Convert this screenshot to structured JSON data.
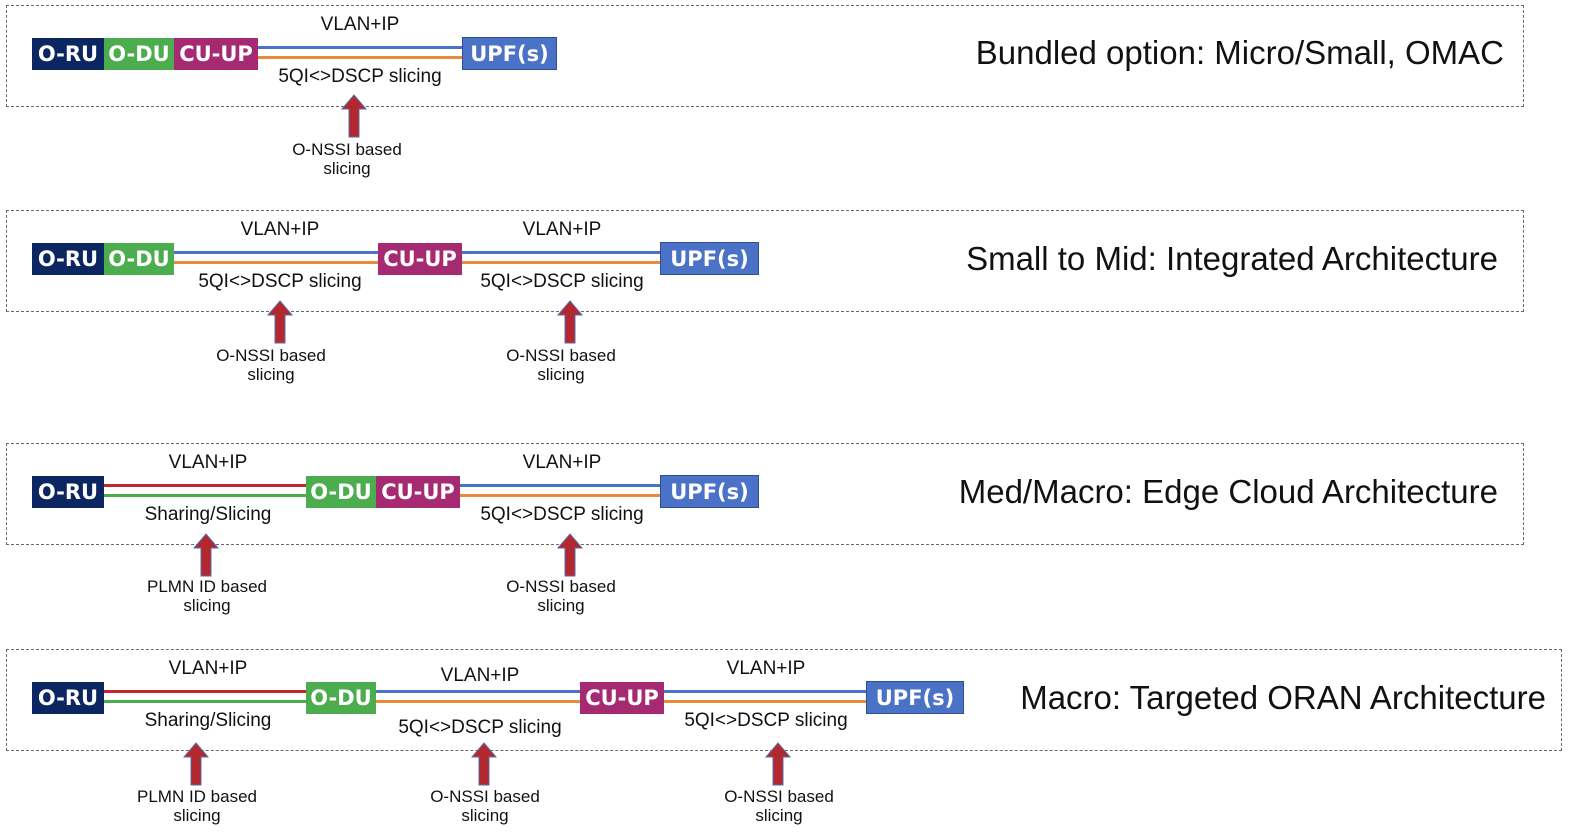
{
  "colors": {
    "o_ru": "#0b2660",
    "o_du": "#4cad4e",
    "cu_up": "#a62a72",
    "upf": "#4a72c6",
    "line_blue": "#4a72c6",
    "line_orange": "#ea8a3c",
    "line_red": "#c0282b",
    "line_green": "#4cad4e",
    "arrow_fill": "#b3282e",
    "arrow_stroke": "#5a6aa8"
  },
  "node_labels": {
    "o_ru": "O-RU",
    "o_du": "O-DU",
    "cu_up": "CU-UP",
    "upf": "UPF(s)"
  },
  "rows": [
    {
      "title": "Bundled option: Micro/Small, OMAC",
      "link_labels": [
        {
          "top": "VLAN+IP",
          "bottom": "5QI<>DSCP slicing"
        }
      ],
      "notes": [
        {
          "line1": "O-NSSI based",
          "line2": "slicing"
        }
      ]
    },
    {
      "title": "Small to Mid: Integrated Architecture",
      "link_labels": [
        {
          "top": "VLAN+IP",
          "bottom": "5QI<>DSCP slicing"
        },
        {
          "top": "VLAN+IP",
          "bottom": "5QI<>DSCP slicing"
        }
      ],
      "notes": [
        {
          "line1": "O-NSSI based",
          "line2": "slicing"
        },
        {
          "line1": "O-NSSI based",
          "line2": "slicing"
        }
      ]
    },
    {
      "title": "Med/Macro: Edge Cloud Architecture",
      "link_labels": [
        {
          "top": "VLAN+IP",
          "bottom": "Sharing/Slicing"
        },
        {
          "top": "VLAN+IP",
          "bottom": "5QI<>DSCP slicing"
        }
      ],
      "notes": [
        {
          "line1": "PLMN ID based",
          "line2": "slicing"
        },
        {
          "line1": "O-NSSI based",
          "line2": "slicing"
        }
      ]
    },
    {
      "title": "Macro: Targeted ORAN Architecture",
      "link_labels": [
        {
          "top": "VLAN+IP",
          "bottom": "Sharing/Slicing"
        },
        {
          "top": "VLAN+IP",
          "bottom": "5QI<>DSCP slicing"
        },
        {
          "top": "VLAN+IP",
          "bottom": "5QI<>DSCP slicing"
        }
      ],
      "notes": [
        {
          "line1": "PLMN ID based",
          "line2": "slicing"
        },
        {
          "line1": "O-NSSI based",
          "line2": "slicing"
        },
        {
          "line1": "O-NSSI based",
          "line2": "slicing"
        }
      ]
    }
  ]
}
